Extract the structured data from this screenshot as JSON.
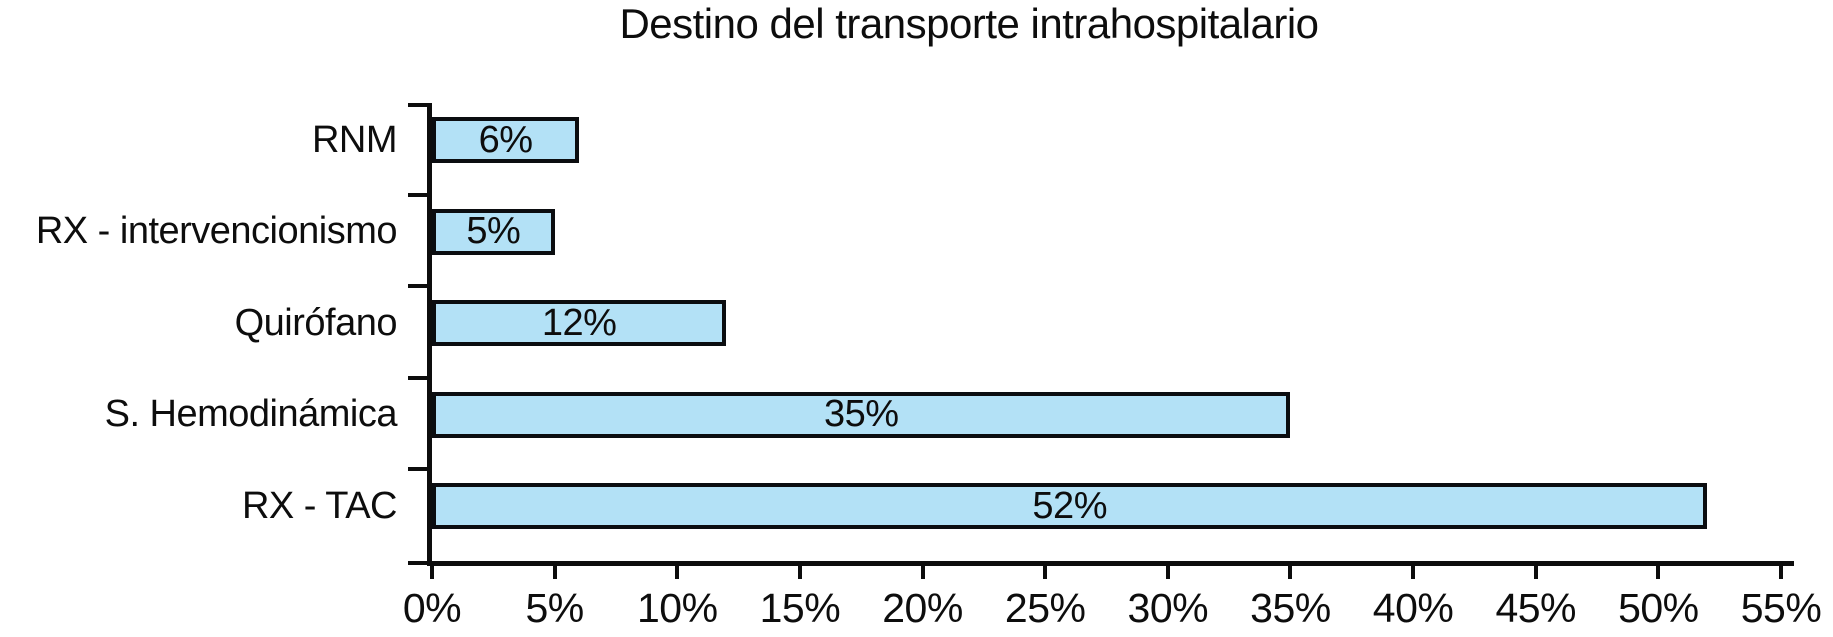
{
  "chart_data": {
    "type": "bar",
    "orientation": "horizontal",
    "title": "Destino del transporte intrahospitalario",
    "categories": [
      "RNM",
      "RX - intervencionismo",
      "Quirófano",
      "S. Hemodinámica",
      "RX - TAC"
    ],
    "values": [
      6,
      5,
      12,
      35,
      52
    ],
    "bar_labels": [
      "6%",
      "5%",
      "12%",
      "35%",
      "52%"
    ],
    "xlabel": "",
    "ylabel": "",
    "xlim": [
      0,
      55
    ],
    "xtick_values": [
      0,
      5,
      10,
      15,
      20,
      25,
      30,
      35,
      40,
      45,
      50,
      55
    ],
    "xtick_labels": [
      "0%",
      "5%",
      "10%",
      "15%",
      "20%",
      "25%",
      "30%",
      "35%",
      "40%",
      "45%",
      "50%",
      "55%"
    ],
    "grid": false,
    "legend": false,
    "colors": {
      "bar_fill": "#B3E1F6",
      "bar_border": "#0B0D10",
      "axis": "#0D0D0D",
      "text": "#0D0D0D",
      "background": "#FFFFFF"
    }
  }
}
